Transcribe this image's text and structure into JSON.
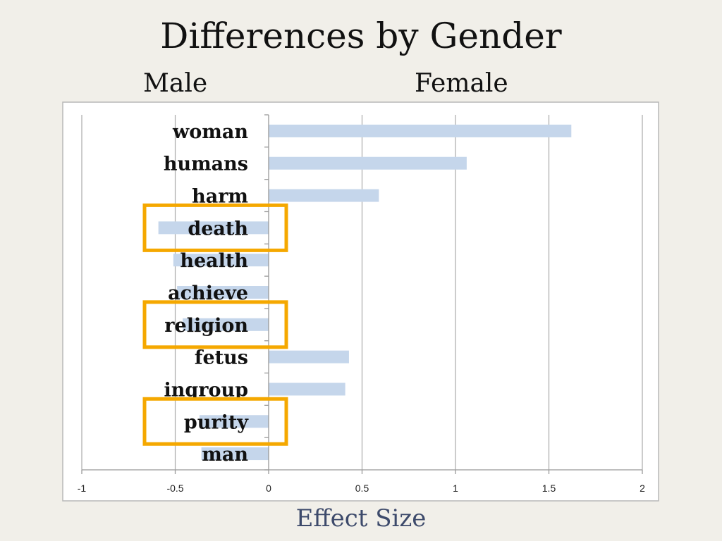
{
  "title": "Differences by Gender",
  "side_labels": {
    "left": "Male",
    "right": "Female"
  },
  "chart_data": {
    "type": "bar",
    "orientation": "horizontal",
    "categories": [
      "woman",
      "humans",
      "harm",
      "death",
      "health",
      "achieve",
      "religion",
      "fetus",
      "ingroup",
      "purity",
      "man"
    ],
    "values": [
      1.62,
      1.06,
      0.59,
      -0.59,
      -0.51,
      -0.49,
      -0.46,
      0.43,
      0.41,
      -0.37,
      -0.36
    ],
    "xlabel": "Effect Size",
    "xlim": [
      -1,
      2
    ],
    "xticks": [
      -1,
      -0.5,
      0,
      0.5,
      1,
      1.5,
      2
    ],
    "xtick_labels": [
      "-1",
      "-0.5",
      "0",
      "0.5",
      "1",
      "1.5",
      "2"
    ],
    "grid": "vertical",
    "bar_color": "#c5d6eb",
    "highlighted": [
      "death",
      "religion",
      "purity"
    ],
    "highlight_color": "#f5a800"
  }
}
